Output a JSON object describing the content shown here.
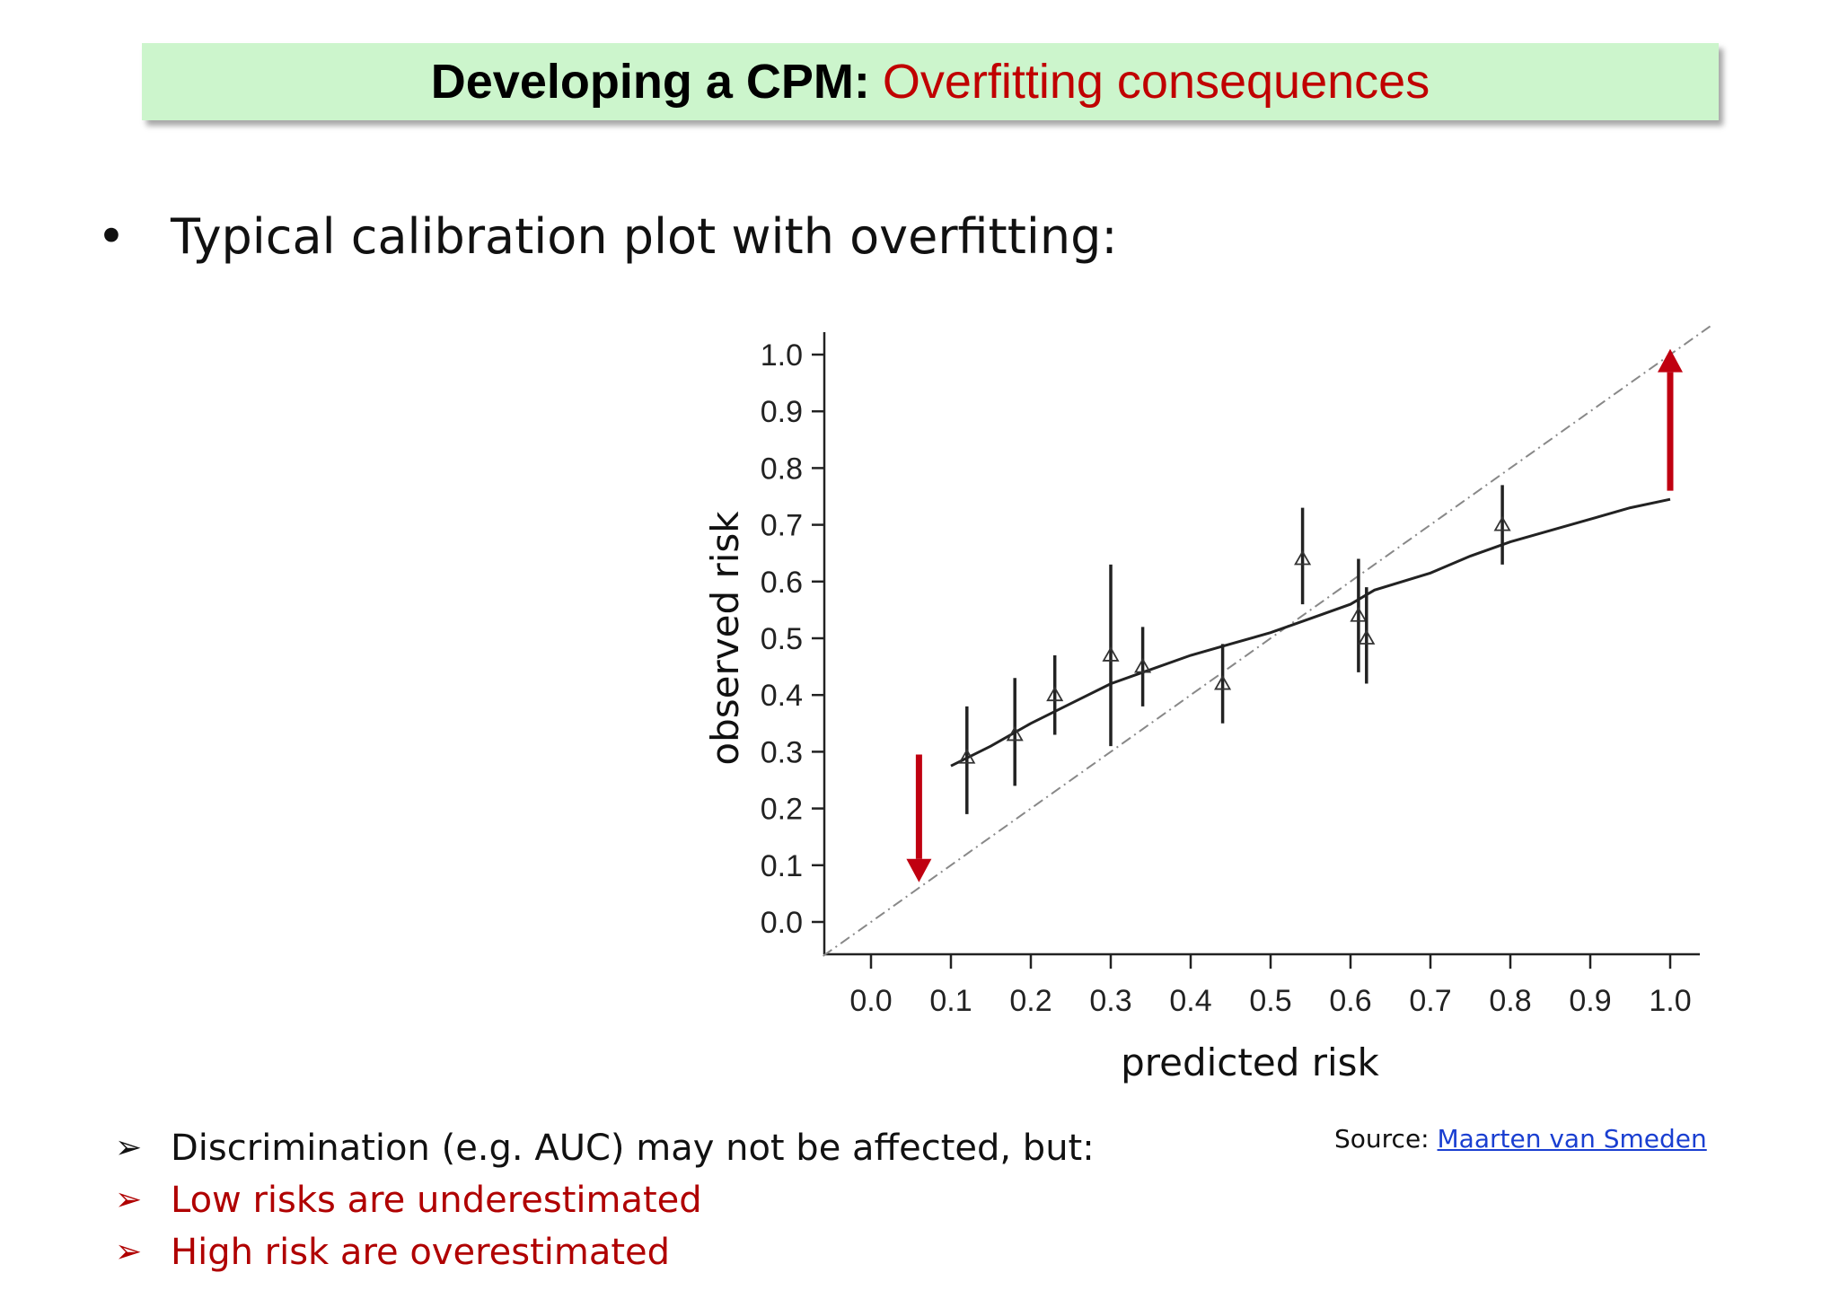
{
  "title": {
    "bold": "Developing a CPM:",
    "accent": "Overfitting consequences"
  },
  "bullet": {
    "marker": "•",
    "text": "Typical calibration plot with overfitting:"
  },
  "notes": [
    {
      "marker": "➢",
      "text": "Discrimination (e.g. AUC) may not be affected, but:",
      "style": "normal"
    },
    {
      "marker": "➢",
      "text": "Low risks are underestimated",
      "style": "red"
    },
    {
      "marker": "➢",
      "text": "High risk are overestimated",
      "style": "red"
    }
  ],
  "source": {
    "label": "Source:",
    "link_text": "Maarten van Smeden"
  },
  "colors": {
    "accent": "#c00000",
    "title_bg": "#ccf5cc",
    "arrow": "#c00010",
    "link": "#1a3fd1"
  },
  "chart_data": {
    "type": "scatter",
    "xlabel": "predicted risk",
    "ylabel": "observed risk",
    "xlim": [
      0.0,
      1.0
    ],
    "ylim": [
      0.0,
      1.0
    ],
    "xticks": [
      "0.0",
      "0.1",
      "0.2",
      "0.3",
      "0.4",
      "0.5",
      "0.6",
      "0.7",
      "0.8",
      "0.9",
      "1.0"
    ],
    "yticks": [
      "0.0",
      "0.1",
      "0.2",
      "0.3",
      "0.4",
      "0.5",
      "0.6",
      "0.7",
      "0.8",
      "0.9",
      "1.0"
    ],
    "grid": false,
    "points": [
      {
        "x": 0.12,
        "y": 0.29,
        "low": 0.19,
        "high": 0.38
      },
      {
        "x": 0.18,
        "y": 0.33,
        "low": 0.24,
        "high": 0.43
      },
      {
        "x": 0.23,
        "y": 0.4,
        "low": 0.33,
        "high": 0.47
      },
      {
        "x": 0.3,
        "y": 0.47,
        "low": 0.31,
        "high": 0.63
      },
      {
        "x": 0.34,
        "y": 0.45,
        "low": 0.38,
        "high": 0.52
      },
      {
        "x": 0.44,
        "y": 0.42,
        "low": 0.35,
        "high": 0.49
      },
      {
        "x": 0.54,
        "y": 0.64,
        "low": 0.56,
        "high": 0.73
      },
      {
        "x": 0.61,
        "y": 0.54,
        "low": 0.44,
        "high": 0.64
      },
      {
        "x": 0.62,
        "y": 0.5,
        "low": 0.42,
        "high": 0.59
      },
      {
        "x": 0.79,
        "y": 0.7,
        "low": 0.63,
        "high": 0.77
      }
    ],
    "smooth_curve": [
      [
        0.1,
        0.275
      ],
      [
        0.15,
        0.31
      ],
      [
        0.2,
        0.35
      ],
      [
        0.25,
        0.385
      ],
      [
        0.3,
        0.42
      ],
      [
        0.35,
        0.445
      ],
      [
        0.4,
        0.47
      ],
      [
        0.45,
        0.49
      ],
      [
        0.5,
        0.51
      ],
      [
        0.55,
        0.535
      ],
      [
        0.6,
        0.56
      ],
      [
        0.63,
        0.585
      ],
      [
        0.7,
        0.615
      ],
      [
        0.75,
        0.645
      ],
      [
        0.8,
        0.67
      ],
      [
        0.85,
        0.69
      ],
      [
        0.9,
        0.71
      ],
      [
        0.95,
        0.73
      ],
      [
        1.0,
        0.745
      ]
    ],
    "reference_line": [
      [
        -0.06,
        -0.06
      ],
      [
        1.05,
        1.05
      ]
    ],
    "arrows": [
      {
        "x": 0.06,
        "from": 0.295,
        "to": 0.07,
        "direction": "down"
      },
      {
        "x": 1.0,
        "from": 0.76,
        "to": 1.01,
        "direction": "up"
      }
    ]
  }
}
